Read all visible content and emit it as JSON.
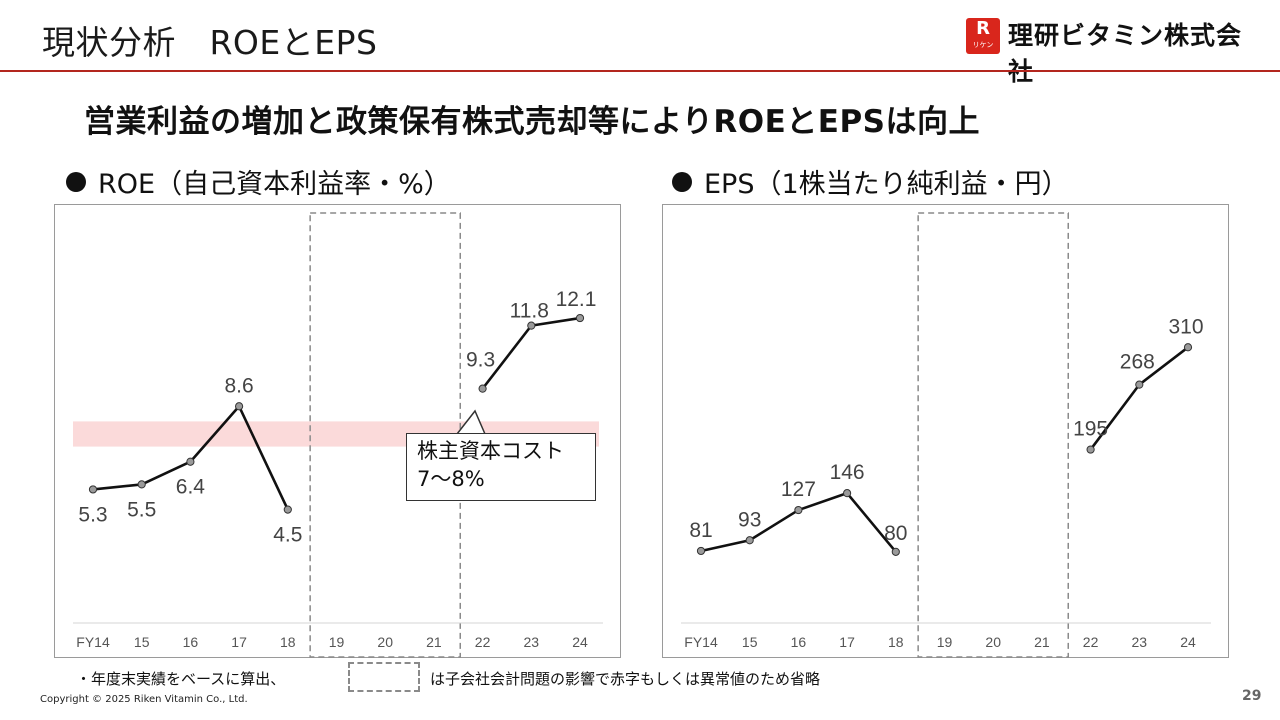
{
  "slide": {
    "title": "現状分析　ROEとEPS",
    "headline": "営業利益の増加と政策保有株式売却等によりROEとEPSは向上",
    "logo_mark": "R",
    "logo_mark_sub": "リケン",
    "logo_text": "理研ビタミン株式会社",
    "page_number": "29",
    "copyright": "Copyright © 2025 Riken Vitamin Co., Ltd.",
    "footnote_left": "・年度末実績をベースに算出、",
    "footnote_right": "は子会社会計問題の影響で赤字もしくは異常値のため省略"
  },
  "colors": {
    "accent_red": "#b3261e",
    "band_pink": "#fbdada",
    "line": "#111111",
    "point_fill": "#9a9a9a",
    "axis_text": "#555555",
    "dashed": "#8a8a8a"
  },
  "chart_data": [
    {
      "type": "line",
      "title": "ROE（自己資本利益率・%）",
      "categories": [
        "FY14",
        "15",
        "16",
        "17",
        "18",
        "19",
        "20",
        "21",
        "22",
        "23",
        "24"
      ],
      "series": [
        {
          "values": [
            5.3,
            5.5,
            6.4,
            8.6,
            4.5,
            null,
            null,
            null,
            9.3,
            11.8,
            12.1
          ]
        }
      ],
      "omitted_categories": [
        "19",
        "20",
        "21"
      ],
      "band": {
        "from": 7,
        "to": 8
      },
      "band_label_1": "株主資本コスト",
      "band_label_2": "7〜8%",
      "ylim": [
        0,
        15
      ]
    },
    {
      "type": "line",
      "title": "EPS（1株当たり純利益・円）",
      "categories": [
        "FY14",
        "15",
        "16",
        "17",
        "18",
        "19",
        "20",
        "21",
        "22",
        "23",
        "24"
      ],
      "series": [
        {
          "values": [
            81,
            93,
            127,
            146,
            80,
            null,
            null,
            null,
            195,
            268,
            310
          ]
        }
      ],
      "omitted_categories": [
        "19",
        "20",
        "21"
      ],
      "ylim": [
        0,
        425
      ]
    }
  ]
}
